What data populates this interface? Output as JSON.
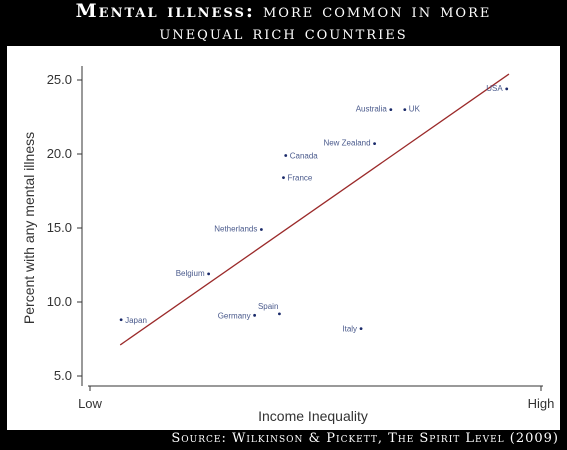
{
  "title": {
    "bold": "Mental illness:",
    "rest": " more common in more",
    "line2": "unequal rich countries"
  },
  "source": "Source: Wilkinson &  Pickett,  The Spirit Level  (2009)",
  "colors": {
    "background": "#000000",
    "plot_bg": "#ffffff",
    "fit_line": "#9b2a2a",
    "points": "#1a2a6a"
  },
  "chart_data": {
    "type": "scatter",
    "title": "Mental illness: more common in more unequal rich countries",
    "xlabel": "Income Inequality",
    "ylabel": "Percent with any mental illness",
    "x_tick_labels": [
      "Low",
      "High"
    ],
    "xlim": [
      0,
      100
    ],
    "ylim": [
      5,
      26
    ],
    "yticks": [
      "5.0",
      "10.0",
      "15.0",
      "20.0",
      "25.0"
    ],
    "grid": false,
    "points": [
      {
        "label": "USA",
        "x": 92.4,
        "y": 24.4
      },
      {
        "label": "UK",
        "x": 69.8,
        "y": 23.0
      },
      {
        "label": "Australia",
        "x": 66.7,
        "y": 23.0
      },
      {
        "label": "New Zealand",
        "x": 63.1,
        "y": 20.7
      },
      {
        "label": "Canada",
        "x": 43.4,
        "y": 19.9
      },
      {
        "label": "France",
        "x": 42.9,
        "y": 18.4
      },
      {
        "label": "Netherlands",
        "x": 38.0,
        "y": 14.9
      },
      {
        "label": "Belgium",
        "x": 26.3,
        "y": 11.9
      },
      {
        "label": "Japan",
        "x": 6.9,
        "y": 8.8
      },
      {
        "label": "Germany",
        "x": 36.5,
        "y": 9.1
      },
      {
        "label": "Spain",
        "x": 42.0,
        "y": 9.2
      },
      {
        "label": "Italy",
        "x": 60.1,
        "y": 8.2
      }
    ],
    "fit_line": {
      "x": [
        6.7,
        92.9
      ],
      "y": [
        7.1,
        25.4
      ]
    }
  }
}
